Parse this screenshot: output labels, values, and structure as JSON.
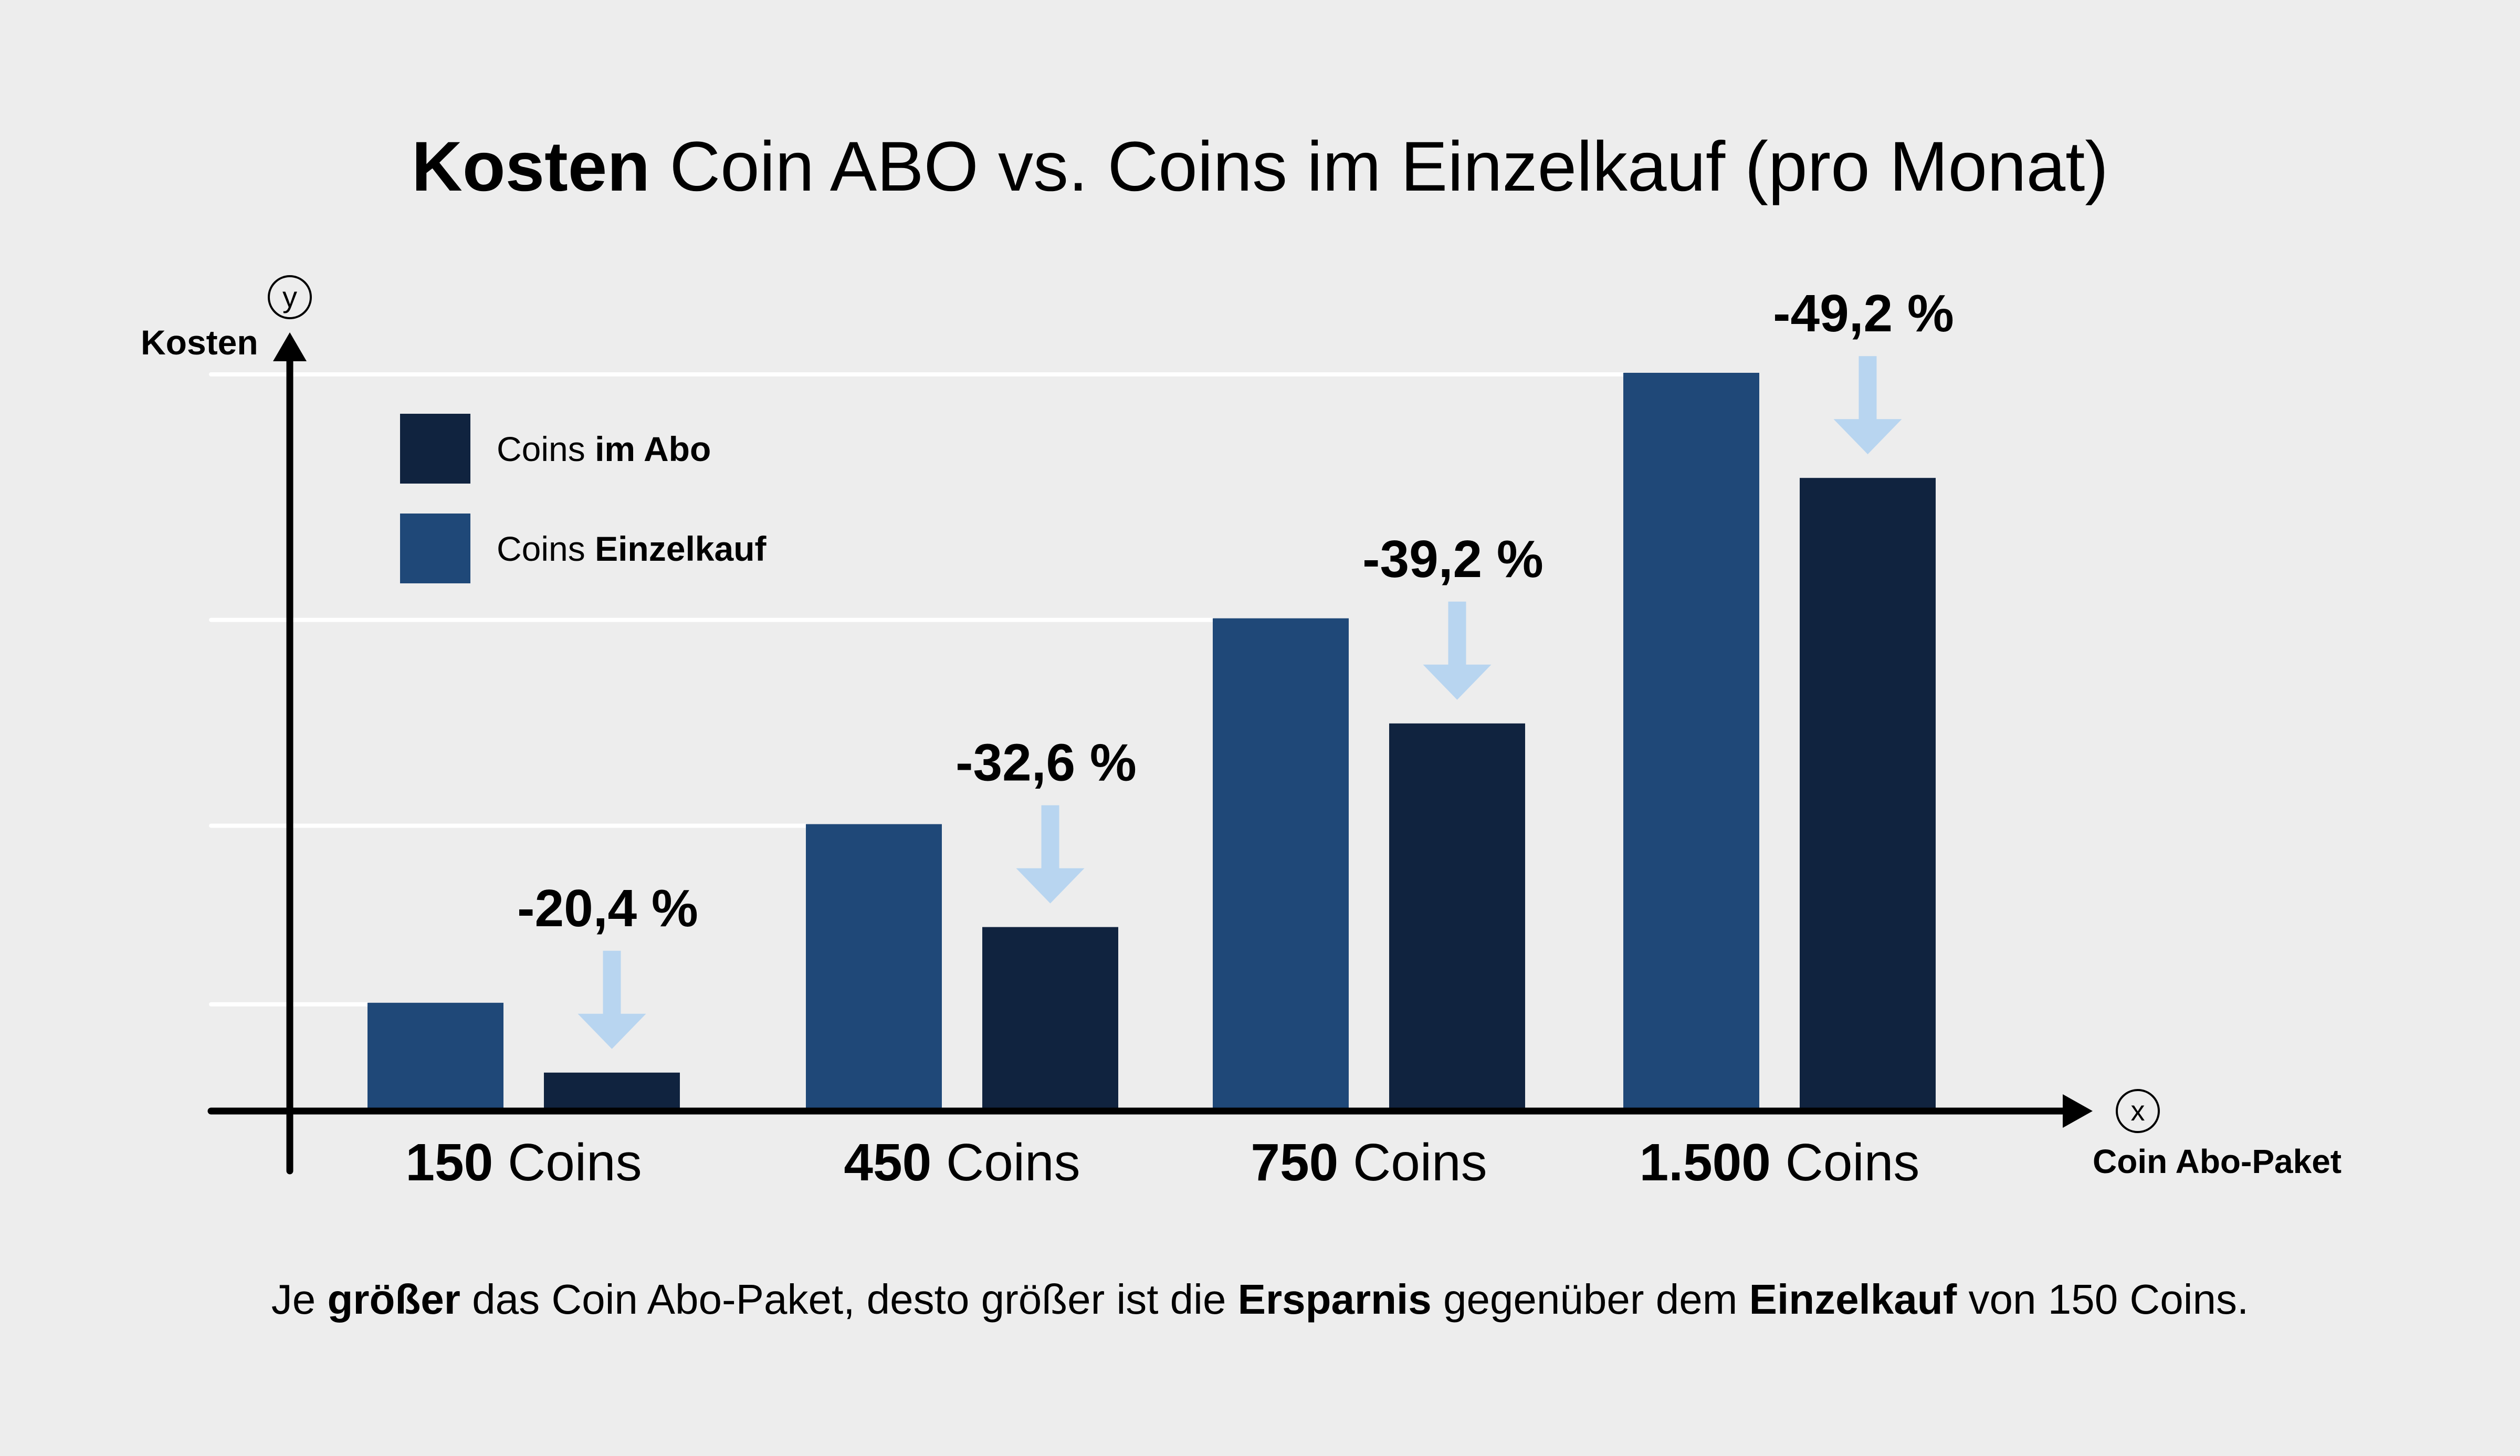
{
  "colors": {
    "background": "#EDEDED",
    "einzelkauf": "#1F4878",
    "abo": "#10233F",
    "arrow": "#B8D5F0",
    "gridline": "#FFFFFF",
    "axis": "#000000"
  },
  "title": {
    "bold": "Kosten",
    "regular": "Coin ABO vs. Coins im Einzelkauf (pro Monat)"
  },
  "footer": {
    "parts": [
      {
        "text": "Je ",
        "bold": false
      },
      {
        "text": "größer",
        "bold": true
      },
      {
        "text": " das Coin Abo-Paket, desto größer ist die ",
        "bold": false
      },
      {
        "text": "Ersparnis",
        "bold": true
      },
      {
        "text": " gegenüber dem ",
        "bold": false
      },
      {
        "text": "Einzelkauf",
        "bold": true
      },
      {
        "text": " von 150 Coins.",
        "bold": false
      }
    ]
  },
  "chart_data": {
    "type": "bar",
    "title": "Kosten Coin ABO vs. Coins im Einzelkauf (pro Monat)",
    "xlabel": "Coin Abo-Paket",
    "ylabel": "Kosten",
    "x_axis_symbol": "x",
    "y_axis_symbol": "y",
    "ylim": [
      0,
      100
    ],
    "y_units": "relative (no tick values shown)",
    "grid": true,
    "legend_position": "top-left",
    "legend": [
      {
        "series": "abo",
        "regular": "Coins ",
        "bold": "im Abo"
      },
      {
        "series": "einzelkauf",
        "regular": "Coins ",
        "bold": "Einzelkauf"
      }
    ],
    "categories": [
      {
        "bold": "150",
        "regular": " Coins"
      },
      {
        "bold": "450",
        "regular": " Coins"
      },
      {
        "bold": "750",
        "regular": " Coins"
      },
      {
        "bold": "1.500",
        "regular": " Coins"
      }
    ],
    "series": [
      {
        "name": "Coins Einzelkauf",
        "key": "einzelkauf",
        "values": [
          14.3,
          38.6,
          66.6,
          100
        ]
      },
      {
        "name": "Coins im Abo",
        "key": "abo",
        "values": [
          4.8,
          24.6,
          52.3,
          85.7
        ]
      }
    ],
    "savings_labels": [
      "-20,4 %",
      "-32,6 %",
      "-39,2 %",
      "-49,2 %"
    ]
  }
}
